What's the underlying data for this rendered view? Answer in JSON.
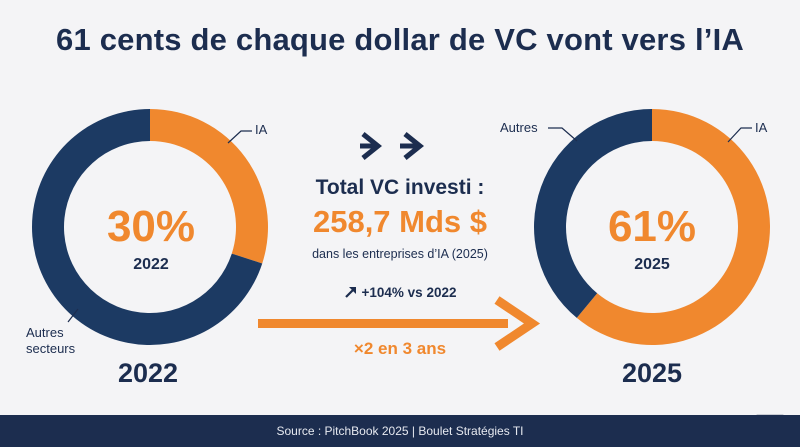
{
  "title": "61 cents de chaque dollar de VC vont vers l’IA",
  "chart_data": [
    {
      "type": "pie",
      "year": "2022",
      "center_value": "30%",
      "center_year": "2022",
      "categories": [
        "IA",
        "Autres secteurs"
      ],
      "values": [
        30,
        70
      ],
      "colors": [
        "#f0882e",
        "#1c3a63"
      ],
      "bottom_label": "2022"
    },
    {
      "type": "pie",
      "year": "2025",
      "center_value": "61%",
      "center_year": "2025",
      "categories": [
        "IA",
        "Autres"
      ],
      "values": [
        61,
        39
      ],
      "colors": [
        "#f0882e",
        "#1c3a63"
      ],
      "bottom_label": "2025"
    }
  ],
  "center": {
    "total_label": "Total VC investi :",
    "total_value": "258,7 Mds $",
    "total_sub": "dans les entreprises d’IA (2025)",
    "growth": "+104% vs 2022",
    "multiplier": "×2 en 3 ans"
  },
  "labels": {
    "left_ia": "IA",
    "left_other_line1": "Autres",
    "left_other_line2": "secteurs",
    "right_ia": "IA",
    "right_other": "Autres"
  },
  "footer": "Source : PitchBook 2025 | Boulet Stratégies TI",
  "colors": {
    "orange": "#f0882e",
    "navy": "#1c2d4f",
    "donut_navy": "#1c3a63"
  }
}
